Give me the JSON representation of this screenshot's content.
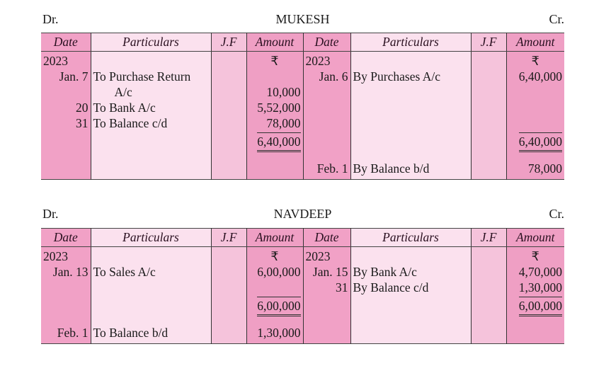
{
  "columns": [
    "Date",
    "Particulars",
    "J.F",
    "Amount",
    "Date",
    "Particulars",
    "J.F",
    "Amount"
  ],
  "dr_label": "Dr.",
  "cr_label": "Cr.",
  "ledgers": [
    {
      "name": "MUKESH",
      "rows": [
        {
          "kind": "first",
          "dr": [
            "2023",
            "",
            "",
            "₹"
          ],
          "cr": [
            "2023",
            "",
            "",
            "₹"
          ]
        },
        {
          "kind": "normal",
          "dr": [
            "Jan. 7",
            "To Purchase Return",
            "",
            ""
          ],
          "cr": [
            "Jan. 6",
            "By Purchases A/c",
            "",
            "6,40,000"
          ]
        },
        {
          "kind": "normal",
          "indent": true,
          "dr": [
            "",
            "A/c",
            "",
            "10,000"
          ],
          "cr": [
            "",
            "",
            "",
            ""
          ]
        },
        {
          "kind": "normal",
          "dr": [
            "20",
            "To Bank A/c",
            "",
            "5,52,000"
          ],
          "cr": [
            "",
            "",
            "",
            ""
          ]
        },
        {
          "kind": "normal",
          "dr": [
            "31",
            "To Balance c/d",
            "",
            "78,000"
          ],
          "cr": [
            "",
            "",
            "",
            ""
          ]
        },
        {
          "kind": "total",
          "dr": [
            "",
            "",
            "",
            "6,40,000"
          ],
          "cr": [
            "",
            "",
            "",
            "6,40,000"
          ]
        },
        {
          "kind": "last",
          "dr": [
            "",
            "",
            "",
            ""
          ],
          "cr": [
            "Feb. 1",
            "By Balance b/d",
            "",
            "78,000"
          ]
        }
      ]
    },
    {
      "name": "NAVDEEP",
      "rows": [
        {
          "kind": "first",
          "dr": [
            "2023",
            "",
            "",
            "₹"
          ],
          "cr": [
            "2023",
            "",
            "",
            "₹"
          ]
        },
        {
          "kind": "normal",
          "dr": [
            "Jan. 13",
            "To Sales A/c",
            "",
            "6,00,000"
          ],
          "cr": [
            "Jan. 15",
            "By Bank A/c",
            "",
            "4,70,000"
          ]
        },
        {
          "kind": "normal",
          "dr": [
            "",
            "",
            "",
            ""
          ],
          "cr": [
            "31",
            "By Balance c/d",
            "",
            "1,30,000"
          ]
        },
        {
          "kind": "total",
          "dr": [
            "",
            "",
            "",
            "6,00,000"
          ],
          "cr": [
            "",
            "",
            "",
            "6,00,000"
          ]
        },
        {
          "kind": "last",
          "dr": [
            "Feb. 1",
            "To Balance b/d",
            "",
            "1,30,000"
          ],
          "cr": [
            "",
            "",
            "",
            ""
          ]
        }
      ]
    }
  ]
}
